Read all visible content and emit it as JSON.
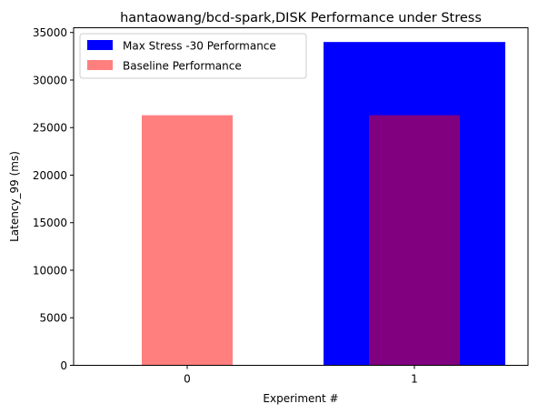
{
  "chart_data": {
    "type": "bar",
    "title": "hantaowang/bcd-spark,DISK Performance under Stress",
    "xlabel": "Experiment #",
    "ylabel": "Latency_99 (ms)",
    "categories": [
      "0",
      "1"
    ],
    "ylim": [
      0,
      35500
    ],
    "yticks": [
      0,
      5000,
      10000,
      15000,
      20000,
      25000,
      30000,
      35000
    ],
    "grid": false,
    "legend_position": "top-left",
    "series": [
      {
        "name": "Max Stress -30 Performance",
        "color": "#0000ff",
        "opacity": 1.0,
        "width": "wide",
        "values": [
          null,
          34000
        ]
      },
      {
        "name": "Baseline Performance",
        "color": "#ff0000",
        "opacity": 0.5,
        "width": "narrow",
        "values": [
          26300,
          26300
        ]
      }
    ]
  }
}
